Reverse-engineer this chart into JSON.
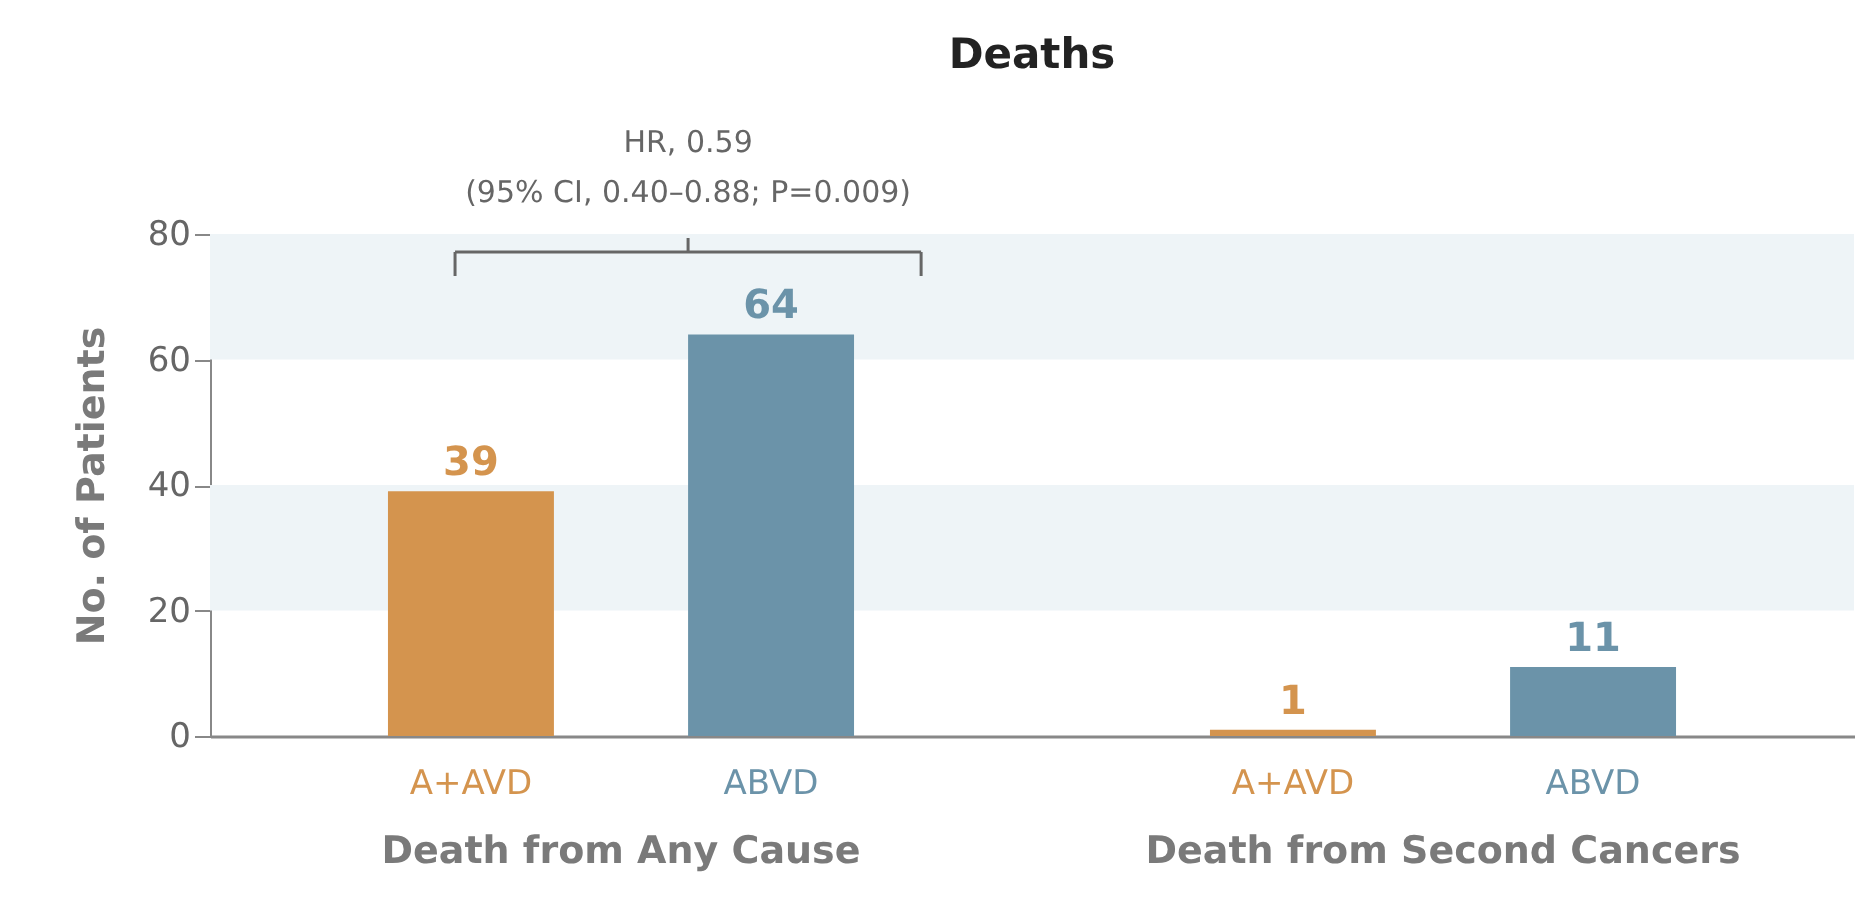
{
  "chart_data": {
    "type": "bar",
    "title": "Deaths",
    "ylabel": "No. of Patients",
    "categories": [
      "Death from Any Cause",
      "Death from Second Cancers"
    ],
    "series": [
      {
        "name": "A+AVD",
        "color": "#d4944e",
        "values": [
          39,
          1
        ]
      },
      {
        "name": "ABVD",
        "color": "#6b93a9",
        "values": [
          64,
          11
        ]
      }
    ],
    "ylim": [
      0,
      80
    ],
    "yticks": [
      0,
      20,
      40,
      60,
      80
    ],
    "legend": false,
    "data_labels": true,
    "bands": [
      {
        "axis": "y",
        "from": 20,
        "to": 40,
        "color": "#eef4f7"
      },
      {
        "axis": "y",
        "from": 60,
        "to": 80,
        "color": "#eef4f7"
      }
    ],
    "annotations": [
      "HR, 0.59\n(95% CI, 0.40–0.88; P=0.009)"
    ]
  }
}
